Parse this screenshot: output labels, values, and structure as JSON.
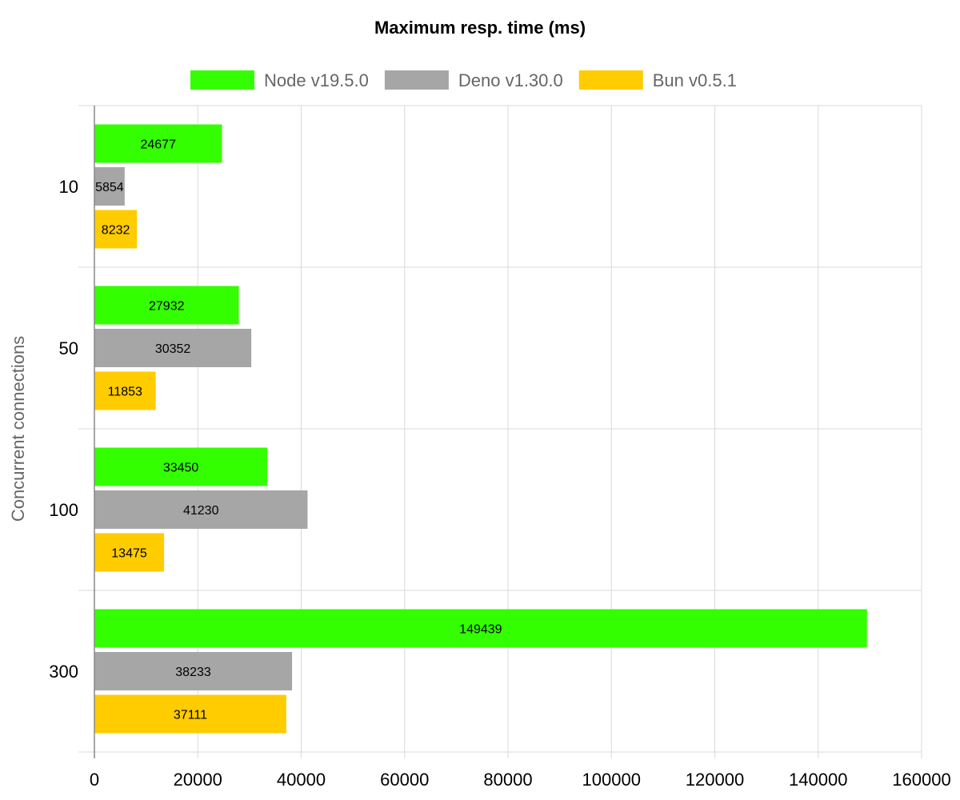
{
  "chart_data": {
    "type": "bar",
    "orientation": "horizontal",
    "title": "Maximum resp. time (ms)",
    "ylabel": "Concurrent connections",
    "xlabel": "",
    "categories": [
      "10",
      "50",
      "100",
      "300"
    ],
    "xlim": [
      0,
      160000
    ],
    "xticks": [
      0,
      20000,
      40000,
      60000,
      80000,
      100000,
      120000,
      140000,
      160000
    ],
    "grid": true,
    "legend_position": "top",
    "series": [
      {
        "name": "Node v19.5.0",
        "color": "#33ff00",
        "values": [
          24677,
          27932,
          33450,
          149439
        ]
      },
      {
        "name": "Deno v1.30.0",
        "color": "#a6a6a6",
        "values": [
          5854,
          30352,
          41230,
          38233
        ]
      },
      {
        "name": "Bun v0.5.1",
        "color": "#ffcc00",
        "values": [
          8232,
          11853,
          13475,
          37111
        ]
      }
    ]
  }
}
